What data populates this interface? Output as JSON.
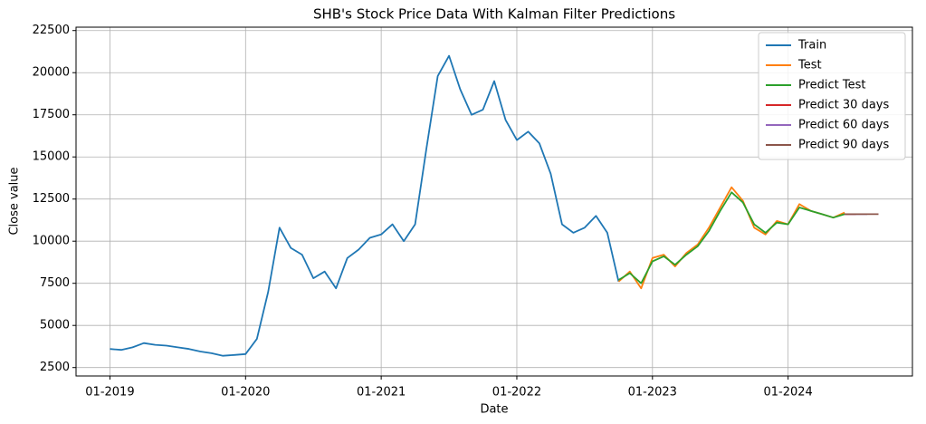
{
  "chart_data": {
    "type": "line",
    "title": "SHB's Stock Price Data With Kalman Filter Predictions",
    "x_label": "Date",
    "y_label": "Close value",
    "xlim": [
      "2018-10",
      "2024-12"
    ],
    "ylim": [
      2000,
      22700
    ],
    "xticks": [
      {
        "value": "2019-01",
        "label": "01-2019"
      },
      {
        "value": "2020-01",
        "label": "01-2020"
      },
      {
        "value": "2021-01",
        "label": "01-2021"
      },
      {
        "value": "2022-01",
        "label": "01-2022"
      },
      {
        "value": "2023-01",
        "label": "01-2023"
      },
      {
        "value": "2024-01",
        "label": "01-2024"
      }
    ],
    "yticks": [
      2500,
      5000,
      7500,
      10000,
      12500,
      15000,
      17500,
      20000,
      22500
    ],
    "grid": true,
    "legend": "upper right",
    "series": [
      {
        "name": "Train",
        "color": "#1f77b4",
        "x": [
          "2019-01",
          "2019-02",
          "2019-03",
          "2019-04",
          "2019-05",
          "2019-06",
          "2019-07",
          "2019-08",
          "2019-09",
          "2019-10",
          "2019-11",
          "2019-12",
          "2020-01",
          "2020-02",
          "2020-03",
          "2020-04",
          "2020-05",
          "2020-06",
          "2020-07",
          "2020-08",
          "2020-09",
          "2020-10",
          "2020-11",
          "2020-12",
          "2021-01",
          "2021-02",
          "2021-03",
          "2021-04",
          "2021-05",
          "2021-06",
          "2021-07",
          "2021-08",
          "2021-09",
          "2021-10",
          "2021-11",
          "2021-12",
          "2022-01",
          "2022-02",
          "2022-03",
          "2022-04",
          "2022-05",
          "2022-06",
          "2022-07",
          "2022-08",
          "2022-09",
          "2022-10"
        ],
        "values": [
          3600,
          3550,
          3700,
          3950,
          3850,
          3800,
          3700,
          3600,
          3450,
          3350,
          3200,
          3250,
          3300,
          4200,
          7000,
          10800,
          9600,
          9200,
          7800,
          8200,
          7200,
          9000,
          9500,
          10200,
          10400,
          11000,
          10000,
          11000,
          15500,
          19800,
          21000,
          19000,
          17500,
          17800,
          19500,
          17200,
          16000,
          16500,
          15800,
          14000,
          11000,
          10500,
          10800,
          11500,
          10500,
          7600
        ]
      },
      {
        "name": "Test",
        "color": "#ff7f0e",
        "x": [
          "2022-10",
          "2022-11",
          "2022-12",
          "2023-01",
          "2023-02",
          "2023-03",
          "2023-04",
          "2023-05",
          "2023-06",
          "2023-07",
          "2023-08",
          "2023-09",
          "2023-10",
          "2023-11",
          "2023-12",
          "2024-01",
          "2024-02",
          "2024-03",
          "2024-04",
          "2024-05",
          "2024-06"
        ],
        "values": [
          7600,
          8200,
          7200,
          9000,
          9200,
          8500,
          9300,
          9800,
          10800,
          12000,
          13200,
          12400,
          10800,
          10400,
          11200,
          11000,
          12200,
          11800,
          11600,
          11400,
          11700
        ]
      },
      {
        "name": "Predict Test",
        "color": "#2ca02c",
        "x": [
          "2022-10",
          "2022-11",
          "2022-12",
          "2023-01",
          "2023-02",
          "2023-03",
          "2023-04",
          "2023-05",
          "2023-06",
          "2023-07",
          "2023-08",
          "2023-09",
          "2023-10",
          "2023-11",
          "2023-12",
          "2024-01",
          "2024-02",
          "2024-03",
          "2024-04",
          "2024-05",
          "2024-06"
        ],
        "values": [
          7700,
          8100,
          7500,
          8800,
          9100,
          8600,
          9200,
          9700,
          10600,
          11800,
          12900,
          12300,
          11000,
          10500,
          11100,
          11000,
          12000,
          11800,
          11600,
          11400,
          11600
        ]
      },
      {
        "name": "Predict 30 days",
        "color": "#d62728",
        "x": [
          "2024-06",
          "2024-07"
        ],
        "values": [
          11600,
          11600
        ]
      },
      {
        "name": "Predict 60 days",
        "color": "#9467bd",
        "x": [
          "2024-06",
          "2024-07",
          "2024-08"
        ],
        "values": [
          11600,
          11600,
          11600
        ]
      },
      {
        "name": "Predict 90 days",
        "color": "#8c564b",
        "x": [
          "2024-06",
          "2024-07",
          "2024-08",
          "2024-09"
        ],
        "values": [
          11600,
          11600,
          11600,
          11600
        ]
      }
    ]
  }
}
